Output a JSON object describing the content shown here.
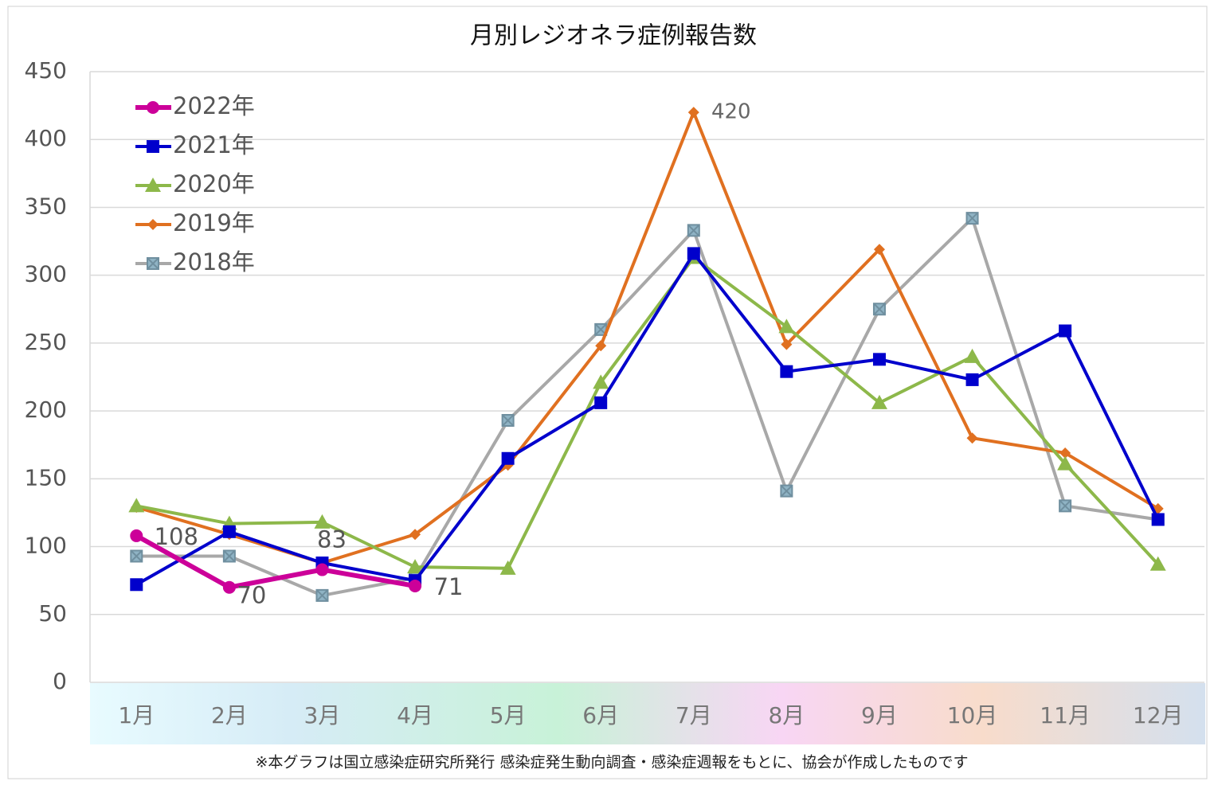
{
  "chart_data": {
    "type": "line",
    "title": "月別レジオネラ症例報告数",
    "footnote": "※本グラフは国立感染症研究所発行 感染症発生動向調査・感染症週報をもとに、協会が作成したものです",
    "categories": [
      "1月",
      "2月",
      "3月",
      "4月",
      "5月",
      "6月",
      "7月",
      "8月",
      "9月",
      "10月",
      "11月",
      "12月"
    ],
    "series": [
      {
        "name": "2022年",
        "color": "#cc0099",
        "marker": "circle",
        "values": [
          108,
          70,
          83,
          71,
          null,
          null,
          null,
          null,
          null,
          null,
          null,
          null
        ]
      },
      {
        "name": "2021年",
        "color": "#0000cc",
        "marker": "square",
        "values": [
          72,
          111,
          88,
          75,
          165,
          206,
          316,
          229,
          238,
          223,
          259,
          120
        ]
      },
      {
        "name": "2020年",
        "color": "#8db84a",
        "marker": "triangle",
        "values": [
          130,
          117,
          118,
          85,
          84,
          221,
          313,
          262,
          206,
          240,
          161,
          87
        ]
      },
      {
        "name": "2019年",
        "color": "#e07020",
        "marker": "diamond",
        "values": [
          129,
          109,
          88,
          109,
          160,
          248,
          420,
          249,
          319,
          180,
          169,
          128
        ]
      },
      {
        "name": "2018年",
        "color": "#a8a8a8",
        "marker": "xsquare",
        "values": [
          93,
          93,
          64,
          77,
          193,
          260,
          333,
          141,
          275,
          342,
          130,
          120
        ]
      }
    ],
    "ylim": [
      0,
      450
    ],
    "yticks": [
      0,
      50,
      100,
      150,
      200,
      250,
      300,
      350,
      400,
      450
    ],
    "grid": true,
    "legend": "top-left"
  }
}
